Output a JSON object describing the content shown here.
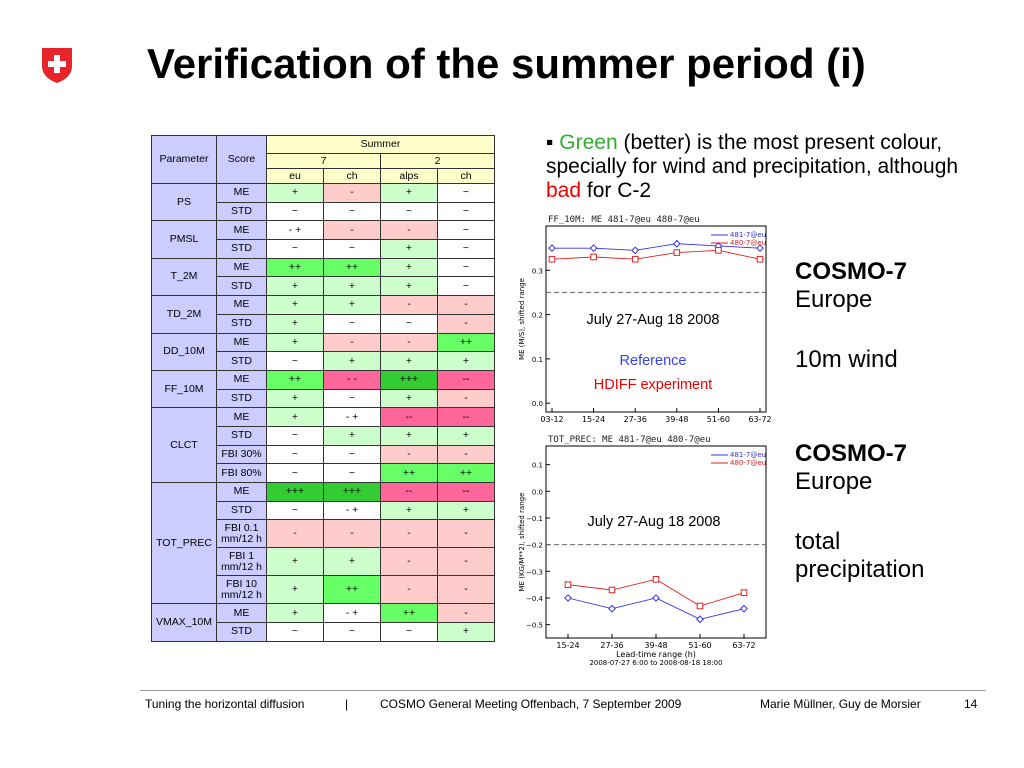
{
  "title": "Verification of the summer period (i)",
  "table": {
    "h_parameter": "Parameter",
    "h_score": "Score",
    "h_summer": "Summer",
    "h_7": "7",
    "h_2": "2",
    "h_cols": [
      "eu",
      "ch",
      "alps",
      "ch"
    ],
    "groups": [
      {
        "param": "PS",
        "rows": [
          {
            "score": "ME",
            "cells": [
              [
                "+",
                "c1"
              ],
              [
                "-",
                "r1"
              ],
              [
                "+",
                "c1"
              ],
              [
                "~",
                "c0"
              ]
            ]
          },
          {
            "score": "STD",
            "cells": [
              [
                "~",
                "c0"
              ],
              [
                "~",
                "c0"
              ],
              [
                "~",
                "c0"
              ],
              [
                "~",
                "c0"
              ]
            ]
          }
        ]
      },
      {
        "param": "PMSL",
        "rows": [
          {
            "score": "ME",
            "cells": [
              [
                "- +",
                "c0"
              ],
              [
                "-",
                "r1"
              ],
              [
                "-",
                "r1"
              ],
              [
                "~",
                "c0"
              ]
            ]
          },
          {
            "score": "STD",
            "cells": [
              [
                "~",
                "c0"
              ],
              [
                "~",
                "c0"
              ],
              [
                "+",
                "c1"
              ],
              [
                "~",
                "c0"
              ]
            ]
          }
        ]
      },
      {
        "param": "T_2M",
        "rows": [
          {
            "score": "ME",
            "cells": [
              [
                "++",
                "c2"
              ],
              [
                "++",
                "c2"
              ],
              [
                "+",
                "c1"
              ],
              [
                "~",
                "c0"
              ]
            ]
          },
          {
            "score": "STD",
            "cells": [
              [
                "+",
                "c1"
              ],
              [
                "+",
                "c1"
              ],
              [
                "+",
                "c1"
              ],
              [
                "~",
                "c0"
              ]
            ]
          }
        ]
      },
      {
        "param": "TD_2M",
        "rows": [
          {
            "score": "ME",
            "cells": [
              [
                "+",
                "c1"
              ],
              [
                "+",
                "c1"
              ],
              [
                "-",
                "r1"
              ],
              [
                "-",
                "r1"
              ]
            ]
          },
          {
            "score": "STD",
            "cells": [
              [
                "+",
                "c1"
              ],
              [
                "~",
                "c0"
              ],
              [
                "~",
                "c0"
              ],
              [
                "-",
                "r1"
              ]
            ]
          }
        ]
      },
      {
        "param": "DD_10M",
        "rows": [
          {
            "score": "ME",
            "cells": [
              [
                "+",
                "c1"
              ],
              [
                "-",
                "r1"
              ],
              [
                "-",
                "r1"
              ],
              [
                "++",
                "c2"
              ]
            ]
          },
          {
            "score": "STD",
            "cells": [
              [
                "~",
                "c0"
              ],
              [
                "+",
                "c1"
              ],
              [
                "+",
                "c1"
              ],
              [
                "+",
                "c1"
              ]
            ]
          }
        ]
      },
      {
        "param": "FF_10M",
        "rows": [
          {
            "score": "ME",
            "cells": [
              [
                "++",
                "c2"
              ],
              [
                "- -",
                "r2"
              ],
              [
                "+++",
                "c3"
              ],
              [
                "--",
                "r2"
              ]
            ]
          },
          {
            "score": "STD",
            "cells": [
              [
                "+",
                "c1"
              ],
              [
                "~",
                "c0"
              ],
              [
                "+",
                "c1"
              ],
              [
                "-",
                "r1"
              ]
            ]
          }
        ]
      },
      {
        "param": "CLCT",
        "rows": [
          {
            "score": "ME",
            "cells": [
              [
                "+",
                "c1"
              ],
              [
                "- +",
                "c0"
              ],
              [
                "--",
                "r2"
              ],
              [
                "--",
                "r2"
              ]
            ]
          },
          {
            "score": "STD",
            "cells": [
              [
                "~",
                "c0"
              ],
              [
                "+",
                "c1"
              ],
              [
                "+",
                "c1"
              ],
              [
                "+",
                "c1"
              ]
            ]
          },
          {
            "score": "FBI 30%",
            "cells": [
              [
                "~",
                "c0"
              ],
              [
                "~",
                "c0"
              ],
              [
                "-",
                "r1"
              ],
              [
                "-",
                "r1"
              ]
            ]
          },
          {
            "score": "FBI 80%",
            "cells": [
              [
                "~",
                "c0"
              ],
              [
                "~",
                "c0"
              ],
              [
                "++",
                "c2"
              ],
              [
                "++",
                "c2"
              ]
            ]
          }
        ]
      },
      {
        "param": "TOT_PREC",
        "rows": [
          {
            "score": "ME",
            "cells": [
              [
                "+++",
                "c3"
              ],
              [
                "+++",
                "c3"
              ],
              [
                "--",
                "r2"
              ],
              [
                "--",
                "r2"
              ]
            ]
          },
          {
            "score": "STD",
            "cells": [
              [
                "~",
                "c0"
              ],
              [
                "- +",
                "c0"
              ],
              [
                "+",
                "c1"
              ],
              [
                "+",
                "c1"
              ]
            ]
          },
          {
            "score": "FBI 0.1 mm/12 h",
            "tall": true,
            "cells": [
              [
                "-",
                "r1"
              ],
              [
                "-",
                "r1"
              ],
              [
                "-",
                "r1"
              ],
              [
                "-",
                "r1"
              ]
            ]
          },
          {
            "score": "FBI 1 mm/12 h",
            "tall": true,
            "cells": [
              [
                "+",
                "c1"
              ],
              [
                "+",
                "c1"
              ],
              [
                "-",
                "r1"
              ],
              [
                "-",
                "r1"
              ]
            ]
          },
          {
            "score": "FBI 10 mm/12 h",
            "tall": true,
            "cells": [
              [
                "+",
                "c1"
              ],
              [
                "++",
                "c2"
              ],
              [
                "-",
                "r1"
              ],
              [
                "-",
                "r1"
              ]
            ]
          }
        ]
      },
      {
        "param": "VMAX_10M",
        "rows": [
          {
            "score": "ME",
            "cells": [
              [
                "+",
                "c1"
              ],
              [
                "- +",
                "c0"
              ],
              [
                "++",
                "c2"
              ],
              [
                "-",
                "r1"
              ]
            ]
          },
          {
            "score": "STD",
            "cells": [
              [
                "~",
                "c0"
              ],
              [
                "~",
                "c0"
              ],
              [
                "~",
                "c0"
              ],
              [
                "+",
                "c1"
              ]
            ]
          }
        ]
      }
    ]
  },
  "bullet": {
    "marker": "▪",
    "green_word": "Green",
    "text_after_green": " (better) is the most present colour, specially for wind and precipitation, although ",
    "bad_word": "bad",
    "text_end": " for C-2"
  },
  "side1": {
    "model": "COSMO-7",
    "region": "Europe",
    "variable": "10m wind"
  },
  "side2": {
    "model": "COSMO-7",
    "region": "Europe",
    "variable_line1": "total",
    "variable_line2": "precipitation"
  },
  "colors": {
    "green_text": "#33aa33",
    "red_text": "#ee0000",
    "blue_series": "#3333dd",
    "red_series": "#dd2222"
  },
  "chart_data": [
    {
      "type": "line",
      "title": "FF_10M: ME 481-7@eu 480-7@eu",
      "ylabel": "ME (M/S), shifted range",
      "categories": [
        "03-12",
        "15-24",
        "27-36",
        "39-48",
        "51-60",
        "63-72"
      ],
      "ylim": [
        -0.02,
        0.4
      ],
      "yticks": [
        0.0,
        0.1,
        0.2,
        0.3
      ],
      "ytick_labels": [
        "0.0",
        "0.1",
        "0.2",
        "0.3"
      ],
      "dashed_line": 0.25,
      "series": [
        {
          "name": "481-7@eu",
          "color": "#3333dd",
          "marker": "diamond",
          "values": [
            0.35,
            0.35,
            0.345,
            0.36,
            0.355,
            0.35
          ]
        },
        {
          "name": "480-7@eu",
          "color": "#dd2222",
          "marker": "square",
          "values": [
            0.325,
            0.33,
            0.325,
            0.34,
            0.345,
            0.325
          ]
        }
      ],
      "annotation_period": "July 27-Aug 18 2008",
      "annotation_reference": "Reference",
      "annotation_experiment": "HDIFF experiment"
    },
    {
      "type": "line",
      "title": "TOT_PREC: ME 481-7@eu 480-7@eu",
      "ylabel": "ME (KG/M**2), shifted range",
      "xlabel": "Lead-time range (h)",
      "subtitle": "2008-07-27 6:00 to 2008-08-18 18:00",
      "categories": [
        "15-24",
        "27-36",
        "39-48",
        "51-60",
        "63-72"
      ],
      "ylim": [
        -0.55,
        0.17
      ],
      "yticks": [
        0.1,
        0.0,
        -0.1,
        -0.2,
        -0.3,
        -0.4,
        -0.5
      ],
      "ytick_labels": [
        "0.1",
        "0.0",
        "−0.1",
        "−0.2",
        "−0.3",
        "−0.4",
        "−0.5"
      ],
      "dashed_line": -0.2,
      "series": [
        {
          "name": "481-7@eu",
          "color": "#3333dd",
          "marker": "diamond",
          "values": [
            -0.4,
            -0.44,
            -0.4,
            -0.48,
            -0.44
          ]
        },
        {
          "name": "480-7@eu",
          "color": "#dd2222",
          "marker": "square",
          "values": [
            -0.35,
            -0.37,
            -0.33,
            -0.43,
            -0.38
          ]
        }
      ],
      "annotation_period": "July 27-Aug 18 2008"
    }
  ],
  "footer": {
    "talk": "Tuning the horizontal diffusion",
    "sep": "|",
    "meeting": "COSMO General Meeting Offenbach, 7 September 2009",
    "authors": "Marie Müllner, Guy de Morsier",
    "page": "14"
  }
}
